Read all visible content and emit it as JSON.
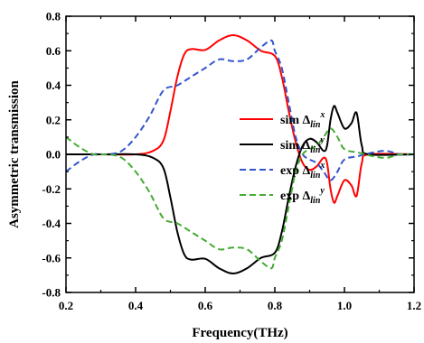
{
  "chart_data": {
    "type": "line",
    "xlabel": "Frequency(THz)",
    "ylabel": "Asymmetric transmission",
    "xlim": [
      0.2,
      1.2
    ],
    "ylim": [
      -0.8,
      0.8
    ],
    "x_ticks": [
      "0.2",
      "0.4",
      "0.6",
      "0.8",
      "1.0",
      "1.2"
    ],
    "y_ticks": [
      "-0.8",
      "-0.6",
      "-0.4",
      "-0.2",
      "0.0",
      "0.2",
      "0.4",
      "0.6",
      "0.8"
    ],
    "grid": false,
    "legend_position": "right",
    "series": [
      {
        "name": "sim Δlin^x",
        "legend": {
          "prefix": "sim ",
          "delta": "Δ",
          "sub": "lin",
          "sup": "x"
        },
        "color": "#ff0000",
        "style": "solid",
        "points": [
          [
            0.2,
            0.0
          ],
          [
            0.3,
            0.0
          ],
          [
            0.4,
            0.0
          ],
          [
            0.45,
            0.02
          ],
          [
            0.48,
            0.08
          ],
          [
            0.5,
            0.25
          ],
          [
            0.52,
            0.45
          ],
          [
            0.54,
            0.58
          ],
          [
            0.56,
            0.61
          ],
          [
            0.6,
            0.605
          ],
          [
            0.64,
            0.66
          ],
          [
            0.68,
            0.69
          ],
          [
            0.72,
            0.66
          ],
          [
            0.76,
            0.6
          ],
          [
            0.8,
            0.57
          ],
          [
            0.82,
            0.45
          ],
          [
            0.84,
            0.25
          ],
          [
            0.86,
            0.07
          ],
          [
            0.88,
            -0.05
          ],
          [
            0.9,
            -0.09
          ],
          [
            0.92,
            -0.07
          ],
          [
            0.94,
            -0.02
          ],
          [
            0.95,
            -0.05
          ],
          [
            0.96,
            -0.2
          ],
          [
            0.97,
            -0.28
          ],
          [
            0.98,
            -0.24
          ],
          [
            1.0,
            -0.15
          ],
          [
            1.02,
            -0.18
          ],
          [
            1.035,
            -0.24
          ],
          [
            1.05,
            -0.05
          ],
          [
            1.07,
            0.0
          ],
          [
            1.2,
            0.0
          ]
        ]
      },
      {
        "name": "sim Δlin^y",
        "legend": {
          "prefix": "sim ",
          "delta": "Δ",
          "sub": "lin",
          "sup": "y"
        },
        "color": "#000000",
        "style": "solid",
        "points": [
          [
            0.2,
            0.0
          ],
          [
            0.3,
            0.0
          ],
          [
            0.4,
            0.0
          ],
          [
            0.45,
            -0.02
          ],
          [
            0.48,
            -0.08
          ],
          [
            0.5,
            -0.25
          ],
          [
            0.52,
            -0.45
          ],
          [
            0.54,
            -0.58
          ],
          [
            0.56,
            -0.61
          ],
          [
            0.6,
            -0.605
          ],
          [
            0.64,
            -0.66
          ],
          [
            0.68,
            -0.69
          ],
          [
            0.72,
            -0.66
          ],
          [
            0.76,
            -0.6
          ],
          [
            0.8,
            -0.57
          ],
          [
            0.82,
            -0.45
          ],
          [
            0.84,
            -0.25
          ],
          [
            0.86,
            -0.07
          ],
          [
            0.88,
            0.05
          ],
          [
            0.9,
            0.09
          ],
          [
            0.92,
            0.07
          ],
          [
            0.94,
            0.02
          ],
          [
            0.95,
            0.05
          ],
          [
            0.96,
            0.2
          ],
          [
            0.97,
            0.28
          ],
          [
            0.98,
            0.24
          ],
          [
            1.0,
            0.15
          ],
          [
            1.02,
            0.18
          ],
          [
            1.035,
            0.24
          ],
          [
            1.05,
            0.05
          ],
          [
            1.07,
            0.0
          ],
          [
            1.2,
            0.0
          ]
        ]
      },
      {
        "name": "exp Δlin^x",
        "legend": {
          "prefix": "exp ",
          "delta": "Δ",
          "sub": "lin",
          "sup": "x"
        },
        "color": "#3355cc",
        "style": "dashed",
        "points": [
          [
            0.2,
            -0.1
          ],
          [
            0.24,
            -0.04
          ],
          [
            0.28,
            0.0
          ],
          [
            0.32,
            0.0
          ],
          [
            0.36,
            0.02
          ],
          [
            0.4,
            0.1
          ],
          [
            0.44,
            0.22
          ],
          [
            0.48,
            0.37
          ],
          [
            0.52,
            0.4
          ],
          [
            0.56,
            0.45
          ],
          [
            0.6,
            0.5
          ],
          [
            0.64,
            0.55
          ],
          [
            0.68,
            0.54
          ],
          [
            0.72,
            0.55
          ],
          [
            0.76,
            0.62
          ],
          [
            0.79,
            0.66
          ],
          [
            0.8,
            0.6
          ],
          [
            0.82,
            0.5
          ],
          [
            0.84,
            0.3
          ],
          [
            0.86,
            0.1
          ],
          [
            0.88,
            0.0
          ],
          [
            0.9,
            -0.03
          ],
          [
            0.92,
            -0.05
          ],
          [
            0.94,
            -0.1
          ],
          [
            0.96,
            -0.15
          ],
          [
            0.98,
            -0.1
          ],
          [
            1.0,
            -0.03
          ],
          [
            1.04,
            -0.01
          ],
          [
            1.08,
            0.01
          ],
          [
            1.12,
            0.02
          ],
          [
            1.16,
            0.0
          ],
          [
            1.2,
            0.0
          ]
        ]
      },
      {
        "name": "exp Δlin^y",
        "legend": {
          "prefix": "exp ",
          "delta": "Δ",
          "sub": "lin",
          "sup": "y"
        },
        "color": "#44aa33",
        "style": "dashed",
        "points": [
          [
            0.2,
            0.1
          ],
          [
            0.24,
            0.04
          ],
          [
            0.28,
            0.0
          ],
          [
            0.32,
            0.0
          ],
          [
            0.36,
            -0.02
          ],
          [
            0.4,
            -0.1
          ],
          [
            0.44,
            -0.22
          ],
          [
            0.48,
            -0.37
          ],
          [
            0.52,
            -0.4
          ],
          [
            0.56,
            -0.45
          ],
          [
            0.6,
            -0.5
          ],
          [
            0.64,
            -0.55
          ],
          [
            0.68,
            -0.54
          ],
          [
            0.72,
            -0.55
          ],
          [
            0.76,
            -0.62
          ],
          [
            0.79,
            -0.66
          ],
          [
            0.8,
            -0.6
          ],
          [
            0.82,
            -0.5
          ],
          [
            0.84,
            -0.3
          ],
          [
            0.86,
            -0.1
          ],
          [
            0.88,
            0.0
          ],
          [
            0.9,
            0.03
          ],
          [
            0.92,
            0.05
          ],
          [
            0.94,
            0.1
          ],
          [
            0.96,
            0.15
          ],
          [
            0.98,
            0.1
          ],
          [
            1.0,
            0.03
          ],
          [
            1.04,
            0.01
          ],
          [
            1.08,
            -0.01
          ],
          [
            1.12,
            -0.02
          ],
          [
            1.16,
            0.0
          ],
          [
            1.2,
            0.0
          ]
        ]
      }
    ]
  }
}
